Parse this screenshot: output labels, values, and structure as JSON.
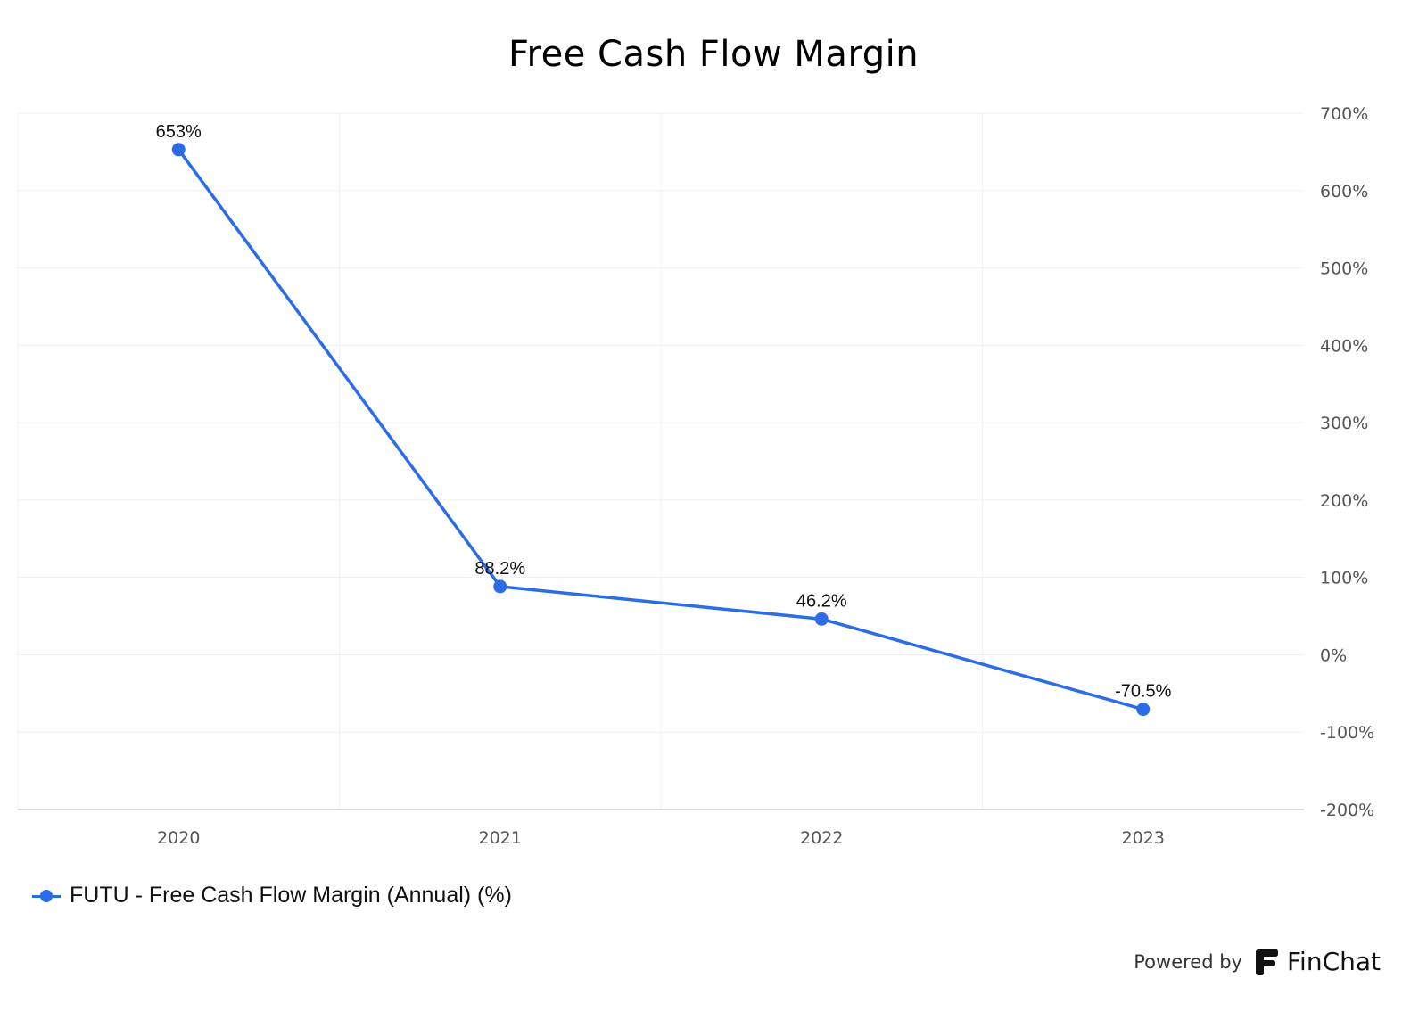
{
  "chart_data": {
    "type": "line",
    "title": "Free Cash Flow Margin",
    "xlabel": "",
    "ylabel": "",
    "categories": [
      "2020",
      "2021",
      "2022",
      "2023"
    ],
    "series": [
      {
        "name": "FUTU - Free Cash Flow Margin (Annual) (%)",
        "values": [
          653,
          88.2,
          46.2,
          -70.5
        ],
        "data_labels": [
          "653%",
          "88.2%",
          "46.2%",
          "-70.5%"
        ],
        "color": "#2b6de6"
      }
    ],
    "ylim": [
      -200,
      700
    ],
    "y_ticks": [
      700,
      600,
      500,
      400,
      300,
      200,
      100,
      0,
      -100,
      -200
    ],
    "y_tick_labels": [
      "700%",
      "600%",
      "500%",
      "400%",
      "300%",
      "200%",
      "100%",
      "0%",
      "-100%",
      "-200%"
    ],
    "y_axis_side": "right",
    "grid": true,
    "legend_position": "bottom-left"
  },
  "footer": {
    "powered_by": "Powered by",
    "brand": "FinChat"
  }
}
